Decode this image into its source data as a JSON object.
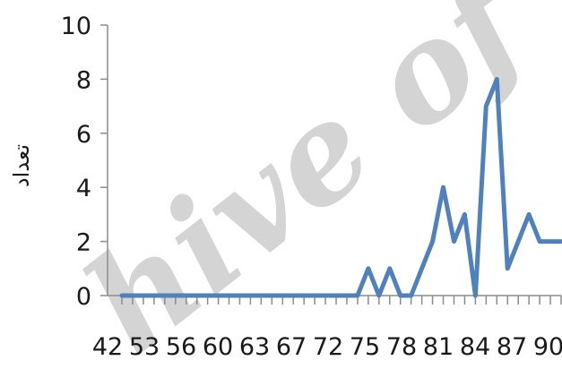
{
  "chart_data": {
    "type": "line",
    "ylabel": "تعداد",
    "xlabel": "",
    "ylim": [
      0,
      10
    ],
    "yticks": [
      0,
      2,
      4,
      6,
      8,
      10
    ],
    "grid": false,
    "legend": "none",
    "x_tick_labels": [
      "42",
      "53",
      "56",
      "60",
      "63",
      "67",
      "72",
      "75",
      "78",
      "81",
      "84",
      "87",
      "90"
    ],
    "series": [
      {
        "color": "#4f81bd",
        "x": [
          "42",
          "47",
          "50",
          "53",
          "54",
          "55",
          "56",
          "57",
          "58",
          "59",
          "60",
          "61",
          "62",
          "63",
          "64",
          "65",
          "66",
          "67",
          "68",
          "69",
          "70",
          "71",
          "72",
          "73",
          "74",
          "75",
          "76",
          "77",
          "78",
          "79",
          "80",
          "81",
          "82",
          "83",
          "84",
          "85",
          "86",
          "87",
          "88",
          "89",
          "90",
          "91"
        ],
        "values": [
          0,
          0,
          0,
          0,
          0,
          0,
          0,
          0,
          0,
          0,
          0,
          0,
          0,
          0,
          0,
          0,
          0,
          0,
          0,
          0,
          0,
          0,
          0,
          1,
          0,
          1,
          0,
          0,
          1,
          2,
          4,
          2,
          3,
          0,
          7,
          8,
          1,
          2,
          3,
          2,
          2,
          2
        ]
      }
    ]
  },
  "watermark": {
    "text": "hive of S",
    "color": "#d4d4d4"
  }
}
